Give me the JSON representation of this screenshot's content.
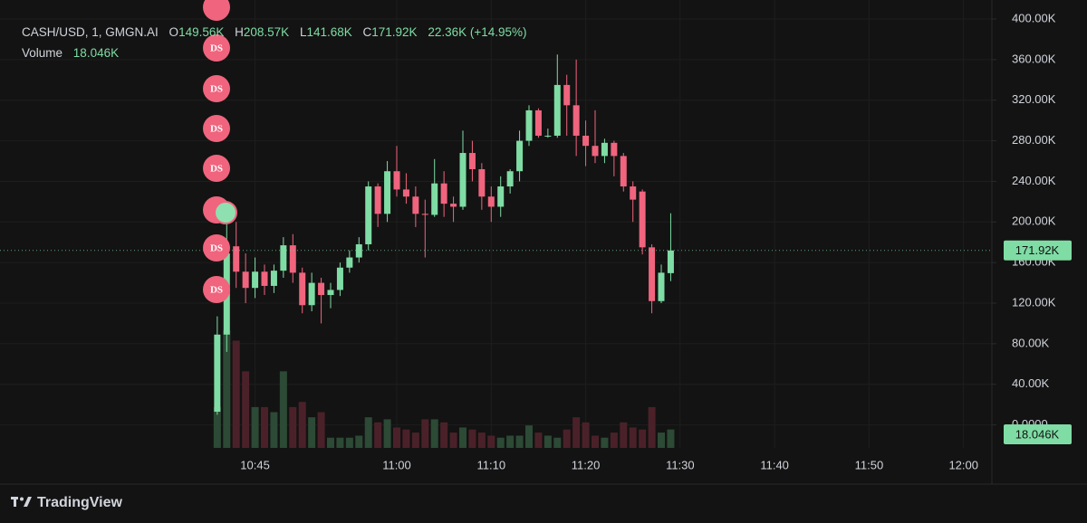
{
  "chart_data": {
    "type": "candlestick",
    "header": {
      "symbol": "CASH/USD, 1, GMGN.AI",
      "open": {
        "label": "O",
        "value": "149.56K"
      },
      "high": {
        "label": "H",
        "value": "208.57K"
      },
      "low": {
        "label": "L",
        "value": "141.68K"
      },
      "close": {
        "label": "C",
        "value": "171.92K"
      },
      "change": "22.36K (+14.95%)",
      "volume": {
        "label": "Volume",
        "value": "18.046K"
      }
    },
    "x": [
      "10:41",
      "10:42",
      "10:43",
      "10:44",
      "10:45",
      "10:46",
      "10:47",
      "10:48",
      "10:49",
      "10:50",
      "10:51",
      "10:52",
      "10:53",
      "10:54",
      "10:55",
      "10:56",
      "10:57",
      "10:58",
      "10:59",
      "11:00",
      "11:01",
      "11:02",
      "11:03",
      "11:04",
      "11:05",
      "11:06",
      "11:07",
      "11:08",
      "11:09",
      "11:10",
      "11:11",
      "11:12",
      "11:13",
      "11:14",
      "11:15",
      "11:16",
      "11:17",
      "11:18",
      "11:19",
      "11:20",
      "11:21",
      "11:22",
      "11:23",
      "11:24",
      "11:25",
      "11:26",
      "11:27",
      "11:28",
      "11:29"
    ],
    "open": [
      13,
      89,
      176,
      151,
      135,
      151,
      137,
      152,
      177,
      150,
      118,
      140,
      128,
      133,
      155,
      165,
      178,
      235,
      208,
      250,
      232,
      225,
      208,
      207,
      238,
      218,
      215,
      268,
      252,
      225,
      215,
      235,
      250,
      280,
      310,
      285,
      285,
      335,
      315,
      285,
      275,
      265,
      278,
      265,
      235,
      230,
      175,
      122,
      149.56
    ],
    "high": [
      107,
      205,
      200,
      169,
      165,
      158,
      158,
      185,
      188,
      155,
      150,
      145,
      140,
      160,
      172,
      185,
      240,
      238,
      260,
      275,
      248,
      235,
      222,
      262,
      250,
      225,
      290,
      280,
      258,
      235,
      245,
      252,
      290,
      315,
      312,
      292,
      365,
      345,
      360,
      300,
      310,
      282,
      280,
      268,
      240,
      232,
      178,
      158,
      208.57
    ],
    "low": [
      10,
      72,
      135,
      120,
      125,
      128,
      130,
      145,
      140,
      110,
      112,
      100,
      115,
      127,
      150,
      160,
      172,
      195,
      200,
      225,
      218,
      195,
      165,
      205,
      205,
      200,
      212,
      240,
      212,
      200,
      205,
      228,
      240,
      275,
      283,
      283,
      283,
      285,
      265,
      255,
      258,
      258,
      245,
      230,
      200,
      168,
      110,
      120,
      141.68
    ],
    "close": [
      89,
      169,
      151,
      135,
      151,
      137,
      152,
      177,
      150,
      118,
      140,
      128,
      133,
      155,
      165,
      178,
      235,
      208,
      250,
      232,
      225,
      208,
      207,
      238,
      218,
      215,
      268,
      252,
      225,
      215,
      235,
      250,
      280,
      310,
      285,
      285,
      335,
      315,
      285,
      275,
      265,
      278,
      265,
      235,
      222,
      175,
      122,
      150,
      171.92
    ],
    "volume": [
      40,
      115,
      105,
      75,
      40,
      40,
      35,
      75,
      40,
      45,
      30,
      35,
      10,
      10,
      10,
      12,
      30,
      25,
      28,
      20,
      18,
      15,
      28,
      28,
      25,
      15,
      20,
      18,
      15,
      12,
      10,
      12,
      12,
      22,
      15,
      12,
      10,
      18,
      30,
      25,
      12,
      10,
      15,
      25,
      20,
      18,
      40,
      15,
      18.046
    ],
    "up_color": "#7fdca4",
    "down_color": "#f0647e",
    "volume_up_color": "#2c4a35",
    "volume_down_color": "#4b2129",
    "xlim": [
      "10:18",
      "12:03"
    ],
    "xticks": [
      "10:45",
      "11:00",
      "11:10",
      "11:20",
      "11:30",
      "11:40",
      "11:50",
      "12:00"
    ],
    "ylim": [
      0,
      400
    ],
    "yticks": [
      {
        "value": 0,
        "label": "0.0000"
      },
      {
        "value": 40,
        "label": "40.00K"
      },
      {
        "value": 80,
        "label": "80.00K"
      },
      {
        "value": 120,
        "label": "120.00K"
      },
      {
        "value": 160,
        "label": "160.00K"
      },
      {
        "value": 200,
        "label": "200.00K"
      },
      {
        "value": 240,
        "label": "240.00K"
      },
      {
        "value": 280,
        "label": "280.00K"
      },
      {
        "value": 320,
        "label": "320.00K"
      },
      {
        "value": 360,
        "label": "360.00K"
      },
      {
        "value": 400,
        "label": "400.00K"
      }
    ],
    "y2lim": [
      0,
      420
    ],
    "grid": true,
    "markers": [
      "DS",
      "DS",
      "DS",
      "DS",
      "DS",
      "DS"
    ],
    "brand": "TradingView"
  }
}
